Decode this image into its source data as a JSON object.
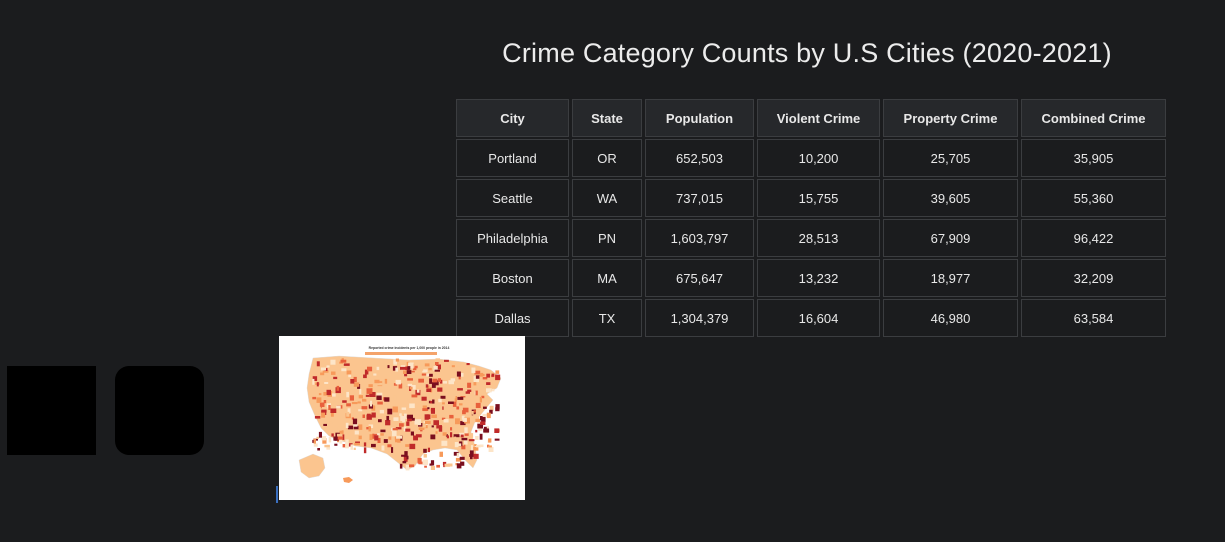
{
  "title": "Crime Category Counts by U.S Cities (2020-2021)",
  "table": {
    "headers": [
      "City",
      "State",
      "Population",
      "Violent Crime",
      "Property Crime",
      "Combined Crime"
    ],
    "rows": [
      [
        "Portland",
        "OR",
        "652,503",
        "10,200",
        "25,705",
        "35,905"
      ],
      [
        "Seattle",
        "WA",
        "737,015",
        "15,755",
        "39,605",
        "55,360"
      ],
      [
        "Philadelphia",
        "PN",
        "1,603,797",
        "28,513",
        "67,909",
        "96,422"
      ],
      [
        "Boston",
        "MA",
        "675,647",
        "13,232",
        "18,977",
        "32,209"
      ],
      [
        "Dallas",
        "TX",
        "1,304,379",
        "16,604",
        "46,980",
        "63,584"
      ]
    ]
  },
  "map_image": {
    "caption": "Reported crime incidents per 1,000 people in 2014",
    "colors": [
      "#fde5c8",
      "#fbc58f",
      "#f79a5a",
      "#e8603c",
      "#c02a2a",
      "#7a0e1e"
    ]
  },
  "colors": {
    "background": "#1b1c1e",
    "header_bg": "#26282b",
    "border": "#3b3d40",
    "text": "#e8e8e8"
  }
}
